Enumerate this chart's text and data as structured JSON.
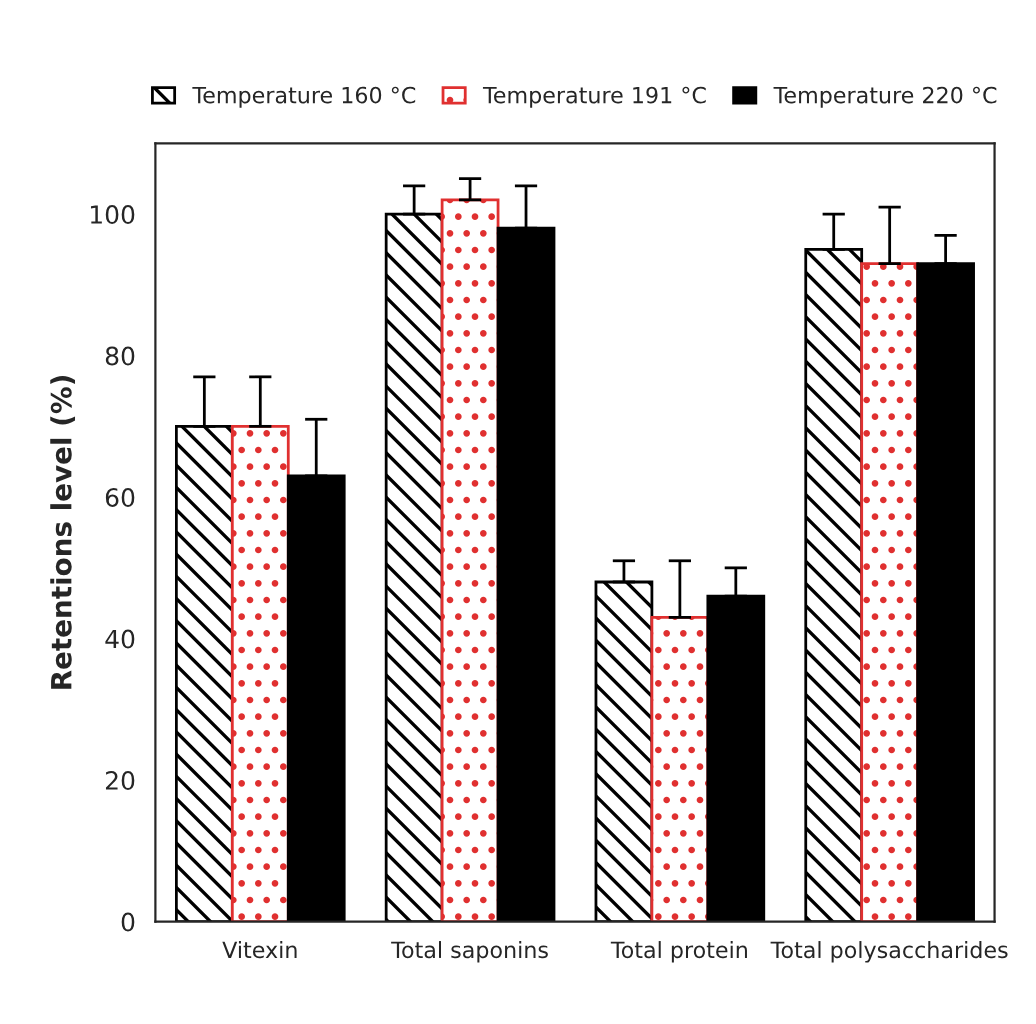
{
  "chart_data": {
    "type": "bar",
    "ylabel": "Retentions level (%)",
    "categories": [
      "Vitexin",
      "Total saponins",
      "Total protein",
      "Total polysaccharides"
    ],
    "series": [
      {
        "name": "Temperature 160 °C",
        "color": "#000000",
        "values": [
          70,
          100,
          48,
          95
        ],
        "errors": [
          [
            70,
            77
          ],
          [
            100,
            104
          ],
          [
            48,
            51
          ],
          [
            95,
            100
          ]
        ]
      },
      {
        "name": "Temperature 191 °C",
        "color": "#e03030",
        "values": [
          70,
          102,
          43,
          93
        ],
        "errors": [
          [
            70,
            77
          ],
          [
            102,
            105
          ],
          [
            43,
            51
          ],
          [
            93,
            101
          ]
        ]
      },
      {
        "name": "Temperature 220 °C",
        "color": "#000000",
        "values": [
          63,
          98,
          46,
          93
        ],
        "errors": [
          [
            63,
            71
          ],
          [
            98,
            104
          ],
          [
            46,
            50
          ],
          [
            93,
            97
          ]
        ]
      }
    ],
    "ylim": [
      0,
      110
    ],
    "yticks": [
      0,
      20,
      40,
      60,
      80,
      100
    ],
    "grid": false,
    "legend": "top"
  }
}
